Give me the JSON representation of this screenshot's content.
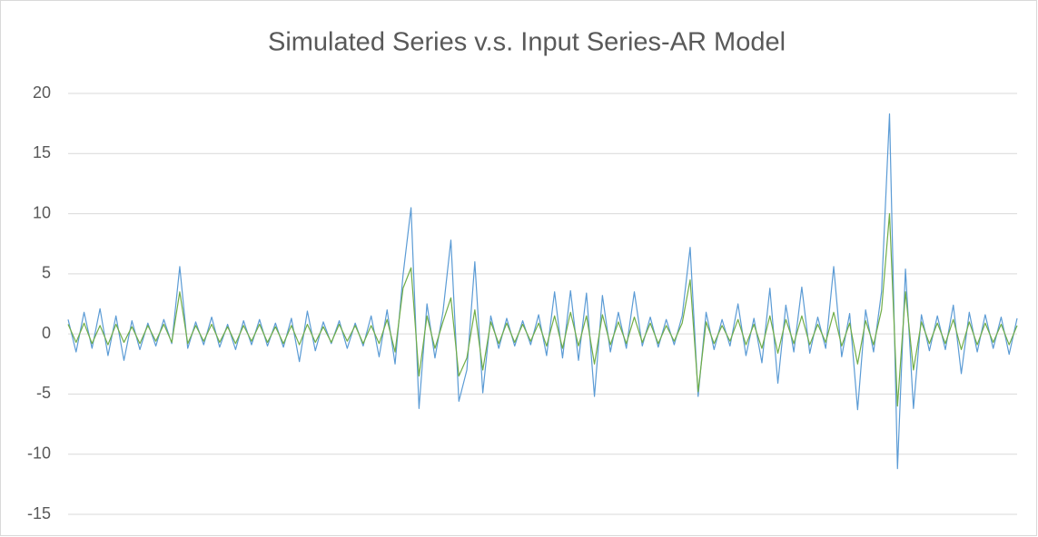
{
  "chart_data": {
    "type": "line",
    "title": "Simulated Series v.s. Input Series-AR Model",
    "ylim": [
      -15,
      20
    ],
    "yticks": [
      -15,
      -10,
      -5,
      0,
      5,
      10,
      15,
      20
    ],
    "grid": true,
    "series": [
      {
        "color": "#5b9bd5",
        "values": [
          1.2,
          -1.5,
          1.8,
          -1.2,
          2.1,
          -1.8,
          1.5,
          -2.2,
          1.1,
          -1.3,
          0.9,
          -1.0,
          1.2,
          -0.8,
          5.6,
          -1.2,
          1.0,
          -0.9,
          1.4,
          -1.1,
          0.8,
          -1.3,
          1.1,
          -0.9,
          1.2,
          -1.0,
          0.9,
          -1.1,
          1.3,
          -2.3,
          1.9,
          -1.4,
          1.0,
          -0.8,
          1.1,
          -1.2,
          0.9,
          -1.0,
          1.5,
          -1.9,
          2.0,
          -2.5,
          4.9,
          10.5,
          -6.2,
          2.5,
          -2.0,
          1.8,
          7.8,
          -5.6,
          -3.0,
          6.0,
          -4.9,
          1.5,
          -1.2,
          1.3,
          -1.0,
          1.1,
          -0.9,
          1.6,
          -1.8,
          3.5,
          -2.0,
          3.6,
          -2.2,
          3.4,
          -5.2,
          3.2,
          -1.5,
          1.8,
          -1.2,
          3.5,
          -1.0,
          1.4,
          -1.1,
          1.2,
          -0.9,
          1.5,
          7.2,
          -5.2,
          1.8,
          -1.3,
          1.2,
          -1.0,
          2.5,
          -1.8,
          1.3,
          -2.4,
          3.8,
          -4.1,
          2.4,
          -1.5,
          3.9,
          -1.6,
          1.4,
          -1.2,
          5.6,
          -1.9,
          1.7,
          -6.3,
          2.0,
          -1.5,
          3.5,
          18.3,
          -11.2,
          5.4,
          -6.2,
          1.6,
          -1.4,
          1.5,
          -1.3,
          2.4,
          -3.3,
          1.8,
          -1.5,
          1.6,
          -1.2,
          1.4,
          -1.7,
          1.3
        ]
      },
      {
        "color": "#70ad47",
        "values": [
          0.8,
          -0.7,
          0.9,
          -0.8,
          0.7,
          -0.9,
          0.8,
          -0.7,
          0.6,
          -0.8,
          0.7,
          -0.6,
          0.8,
          -0.7,
          3.5,
          -0.8,
          0.7,
          -0.6,
          0.8,
          -0.7,
          0.6,
          -0.8,
          0.7,
          -0.6,
          0.8,
          -0.7,
          0.6,
          -0.8,
          0.7,
          -0.9,
          0.8,
          -0.7,
          0.6,
          -0.7,
          0.8,
          -0.6,
          0.7,
          -0.8,
          0.7,
          -0.8,
          1.2,
          -1.5,
          3.8,
          5.5,
          -3.5,
          1.5,
          -1.2,
          1.0,
          3.0,
          -3.5,
          -2.0,
          2.0,
          -3.0,
          1.0,
          -0.8,
          0.9,
          -0.7,
          0.8,
          -0.6,
          0.9,
          -1.0,
          1.5,
          -1.2,
          1.8,
          -1.0,
          1.5,
          -2.5,
          1.6,
          -0.9,
          1.0,
          -0.8,
          1.4,
          -0.7,
          0.9,
          -0.8,
          0.7,
          -0.6,
          0.9,
          4.5,
          -4.8,
          1.0,
          -0.8,
          0.7,
          -0.6,
          1.2,
          -0.9,
          0.8,
          -1.2,
          1.5,
          -1.6,
          1.2,
          -0.8,
          1.5,
          -0.9,
          0.8,
          -0.7,
          1.8,
          -1.0,
          0.9,
          -2.5,
          1.1,
          -0.9,
          2.0,
          10.0,
          -6.0,
          3.5,
          -3.0,
          1.0,
          -0.8,
          0.9,
          -0.8,
          1.2,
          -1.3,
          1.0,
          -0.9,
          0.9,
          -0.7,
          0.8,
          -0.9,
          0.7
        ]
      }
    ]
  }
}
